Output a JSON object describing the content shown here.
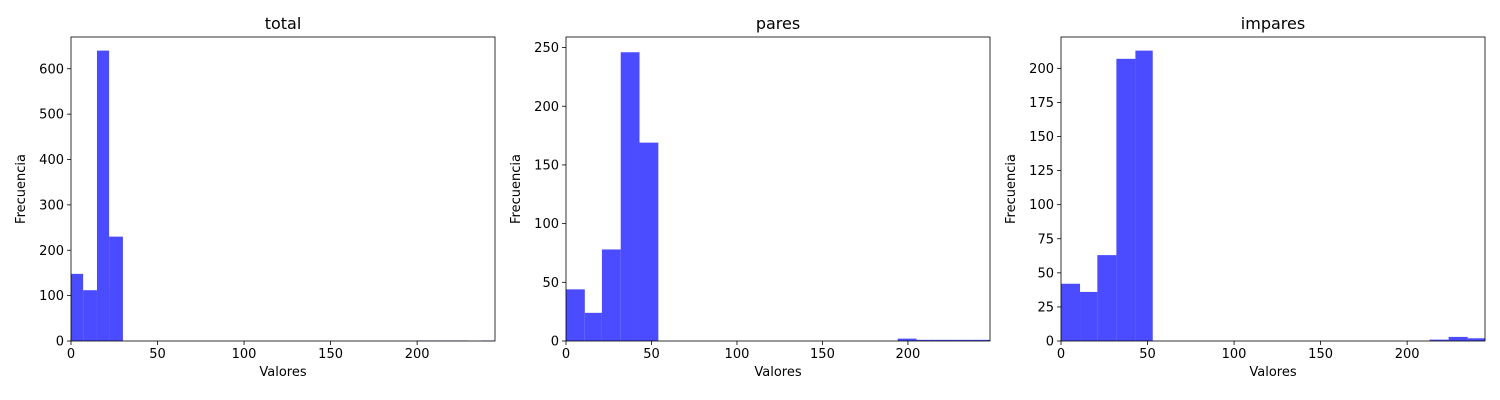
{
  "chart_data": [
    {
      "type": "bar",
      "title": "total",
      "xlabel": "Valores",
      "ylabel": "Frecuencia",
      "xlim": [
        0,
        245
      ],
      "ylim": [
        0,
        670
      ],
      "x_ticks": [
        0,
        50,
        100,
        150,
        200
      ],
      "y_ticks": [
        0,
        100,
        200,
        300,
        400,
        500,
        600
      ],
      "bins": [
        {
          "x0": 0,
          "x1": 7,
          "value": 148
        },
        {
          "x0": 7,
          "x1": 15,
          "value": 112
        },
        {
          "x0": 15,
          "x1": 22,
          "value": 640
        },
        {
          "x0": 22,
          "x1": 30,
          "value": 230
        },
        {
          "x0": 200,
          "x1": 207,
          "value": 1
        },
        {
          "x0": 207,
          "x1": 215,
          "value": 1
        },
        {
          "x0": 215,
          "x1": 222,
          "value": 1
        },
        {
          "x0": 222,
          "x1": 229,
          "value": 1
        },
        {
          "x0": 237,
          "x1": 245,
          "value": 1
        }
      ],
      "color": "#4b4bff",
      "grid": false
    },
    {
      "type": "bar",
      "title": "pares",
      "xlabel": "Valores",
      "ylabel": "Frecuencia",
      "xlim": [
        0,
        248
      ],
      "ylim": [
        0,
        259
      ],
      "x_ticks": [
        0,
        50,
        100,
        150,
        200
      ],
      "y_ticks": [
        0,
        50,
        100,
        150,
        200,
        250
      ],
      "bins": [
        {
          "x0": 0,
          "x1": 11,
          "value": 44
        },
        {
          "x0": 11,
          "x1": 21,
          "value": 24
        },
        {
          "x0": 21,
          "x1": 32,
          "value": 78
        },
        {
          "x0": 32,
          "x1": 43,
          "value": 246
        },
        {
          "x0": 43,
          "x1": 54,
          "value": 169
        },
        {
          "x0": 194,
          "x1": 205,
          "value": 2
        },
        {
          "x0": 205,
          "x1": 216,
          "value": 1
        },
        {
          "x0": 216,
          "x1": 226,
          "value": 1
        },
        {
          "x0": 226,
          "x1": 237,
          "value": 1
        },
        {
          "x0": 237,
          "x1": 248,
          "value": 1
        }
      ],
      "color": "#4b4bff",
      "grid": false
    },
    {
      "type": "bar",
      "title": "impares",
      "xlabel": "Valores",
      "ylabel": "Frecuencia",
      "xlim": [
        0,
        245
      ],
      "ylim": [
        0,
        223
      ],
      "x_ticks": [
        0,
        50,
        100,
        150,
        200
      ],
      "y_ticks": [
        0,
        25,
        50,
        75,
        100,
        125,
        150,
        175,
        200
      ],
      "bins": [
        {
          "x0": 0,
          "x1": 11,
          "value": 42
        },
        {
          "x0": 11,
          "x1": 21,
          "value": 36
        },
        {
          "x0": 21,
          "x1": 32,
          "value": 63
        },
        {
          "x0": 32,
          "x1": 43,
          "value": 207
        },
        {
          "x0": 43,
          "x1": 53,
          "value": 213
        },
        {
          "x0": 213,
          "x1": 224,
          "value": 1
        },
        {
          "x0": 224,
          "x1": 235,
          "value": 3
        },
        {
          "x0": 235,
          "x1": 245,
          "value": 2
        }
      ],
      "color": "#4b4bff",
      "grid": false
    }
  ]
}
